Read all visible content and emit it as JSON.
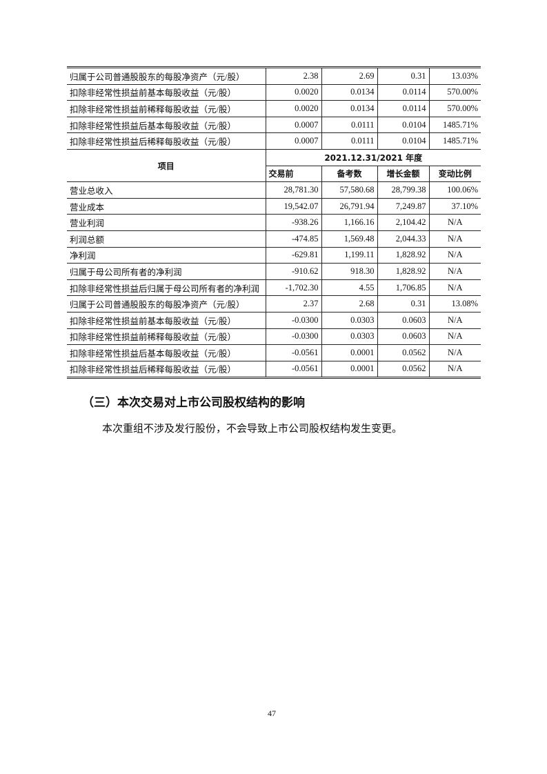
{
  "table": {
    "top_rows": [
      [
        "归属于公司普通股股东的每股净资产（元/股）",
        "2.38",
        "2.69",
        "0.31",
        "13.03%"
      ],
      [
        "扣除非经常性损益前基本每股收益（元/股）",
        "0.0020",
        "0.0134",
        "0.0114",
        "570.00%"
      ],
      [
        "扣除非经常性损益前稀释每股收益（元/股）",
        "0.0020",
        "0.0134",
        "0.0114",
        "570.00%"
      ],
      [
        "扣除非经常性损益后基本每股收益（元/股）",
        "0.0007",
        "0.0111",
        "0.0104",
        "1485.71%"
      ],
      [
        "扣除非经常性损益后稀释每股收益（元/股）",
        "0.0007",
        "0.0111",
        "0.0104",
        "1485.71%"
      ]
    ],
    "header": {
      "item": "项目",
      "period": "2021.12.31/2021 年度",
      "columns": [
        "交易前",
        "备考数",
        "增长金额",
        "变动比例"
      ]
    },
    "rows": [
      [
        "营业总收入",
        "28,781.30",
        "57,580.68",
        "28,799.38",
        "100.06%"
      ],
      [
        "营业成本",
        "19,542.07",
        "26,791.94",
        "7,249.87",
        "37.10%"
      ],
      [
        "营业利润",
        "-938.26",
        "1,166.16",
        "2,104.42",
        "N/A"
      ],
      [
        "利润总额",
        "-474.85",
        "1,569.48",
        "2,044.33",
        "N/A"
      ],
      [
        "净利润",
        "-629.81",
        "1,199.11",
        "1,828.92",
        "N/A"
      ],
      [
        "归属于母公司所有者的净利润",
        "-910.62",
        "918.30",
        "1,828.92",
        "N/A"
      ],
      [
        "扣除非经常性损益后归属于母公司所有者的净利润",
        "-1,702.30",
        "4.55",
        "1,706.85",
        "N/A"
      ],
      [
        "归属于公司普通股股东的每股净资产（元/股）",
        "2.37",
        "2.68",
        "0.31",
        "13.08%"
      ],
      [
        "扣除非经常性损益前基本每股收益（元/股）",
        "-0.0300",
        "0.0303",
        "0.0603",
        "N/A"
      ],
      [
        "扣除非经常性损益前稀释每股收益（元/股）",
        "-0.0300",
        "0.0303",
        "0.0603",
        "N/A"
      ],
      [
        "扣除非经常性损益后基本每股收益（元/股）",
        "-0.0561",
        "0.0001",
        "0.0562",
        "N/A"
      ],
      [
        "扣除非经常性损益后稀释每股收益（元/股）",
        "-0.0561",
        "0.0001",
        "0.0562",
        "N/A"
      ]
    ]
  },
  "section": {
    "heading": "（三）本次交易对上市公司股权结构的影响",
    "paragraph": "本次重组不涉及发行股份，不会导致上市公司股权结构发生变更。"
  },
  "page_number": "47"
}
